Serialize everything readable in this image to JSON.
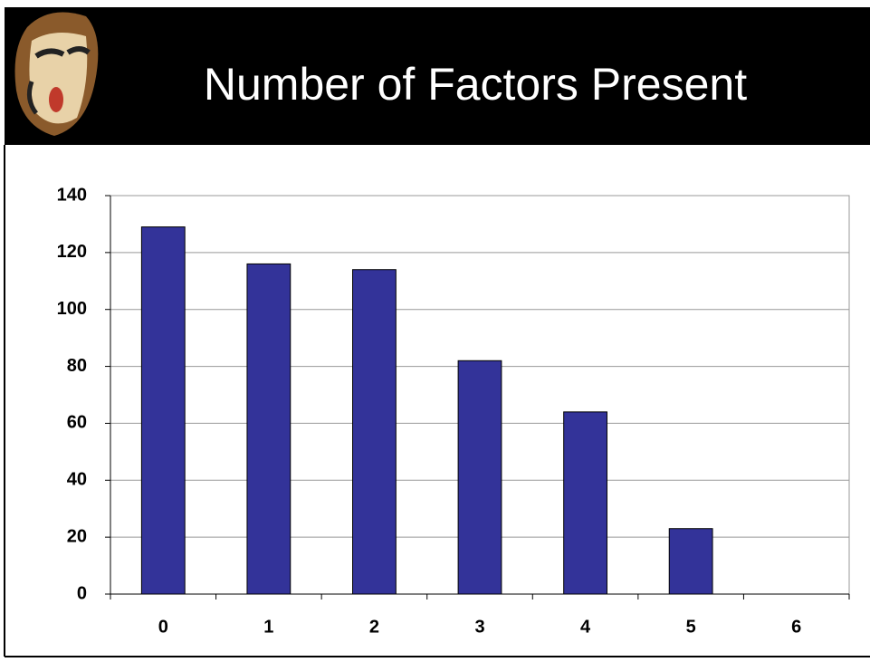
{
  "chart_data": {
    "type": "bar",
    "title": "Number of Factors Present",
    "categories": [
      "0",
      "1",
      "2",
      "3",
      "4",
      "5",
      "6"
    ],
    "values": [
      129,
      116,
      114,
      82,
      64,
      23,
      0
    ],
    "color": "#333399",
    "ylim": [
      0,
      140
    ],
    "yticks": [
      0,
      20,
      40,
      60,
      80,
      100,
      120,
      140
    ],
    "grid": true
  }
}
